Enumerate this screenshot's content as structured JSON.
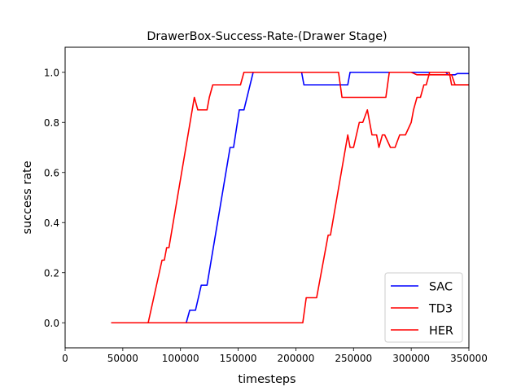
{
  "chart_data": {
    "type": "line",
    "title": "DrawerBox-Success-Rate-(Drawer Stage)",
    "xlabel": "timesteps",
    "ylabel": "success rate",
    "xlim": [
      0,
      350000
    ],
    "ylim": [
      -0.1,
      1.1
    ],
    "xticks": [
      0,
      50000,
      100000,
      150000,
      200000,
      250000,
      300000,
      350000
    ],
    "xtick_labels": [
      "0",
      "50000",
      "100000",
      "150000",
      "200000",
      "250000",
      "300000",
      "350000"
    ],
    "yticks": [
      0.0,
      0.2,
      0.4,
      0.6,
      0.8,
      1.0
    ],
    "ytick_labels": [
      "0.0",
      "0.2",
      "0.4",
      "0.6",
      "0.8",
      "1.0"
    ],
    "grid": false,
    "legend_position": "lower-right",
    "series": [
      {
        "name": "SAC",
        "color": "#0000ff",
        "x": [
          40000,
          105000,
          108000,
          113000,
          118000,
          123000,
          143000,
          146000,
          151000,
          155000,
          163000,
          165000,
          205000,
          207000,
          245000,
          247000,
          330000,
          332000,
          338000,
          340000,
          350000
        ],
        "y": [
          0,
          0,
          0.05,
          0.05,
          0.15,
          0.15,
          0.7,
          0.7,
          0.85,
          0.85,
          1.0,
          1.0,
          1.0,
          0.95,
          0.95,
          1.0,
          1.0,
          0.99,
          0.99,
          0.995,
          0.995
        ]
      },
      {
        "name": "TD3",
        "color": "#ff0000",
        "x": [
          40000,
          72000,
          84000,
          86000,
          88000,
          90000,
          112000,
          115000,
          123000,
          125000,
          128000,
          152000,
          155000,
          237000,
          240000,
          278000,
          281000,
          300000,
          305000,
          335000,
          338000,
          350000
        ],
        "y": [
          0,
          0,
          0.25,
          0.25,
          0.3,
          0.3,
          0.9,
          0.85,
          0.85,
          0.9,
          0.95,
          0.95,
          1.0,
          1.0,
          0.9,
          0.9,
          1.0,
          1.0,
          0.99,
          0.99,
          0.95,
          0.95
        ]
      },
      {
        "name": "HER",
        "color": "#ff0000",
        "x": [
          40000,
          206000,
          209000,
          218000,
          220000,
          228000,
          230000,
          245000,
          247000,
          250000,
          255000,
          258000,
          262000,
          266000,
          268000,
          270000,
          272000,
          275000,
          277000,
          282000,
          284000,
          286000,
          290000,
          292000,
          295000,
          300000,
          302000,
          305000,
          308000,
          311000,
          313000,
          316000,
          320000,
          333000,
          335000,
          350000
        ],
        "y": [
          0,
          0,
          0.1,
          0.1,
          0.15,
          0.35,
          0.35,
          0.75,
          0.7,
          0.7,
          0.8,
          0.8,
          0.85,
          0.75,
          0.75,
          0.75,
          0.7,
          0.75,
          0.75,
          0.7,
          0.7,
          0.7,
          0.75,
          0.75,
          0.75,
          0.8,
          0.85,
          0.9,
          0.9,
          0.95,
          0.95,
          1.0,
          1.0,
          1.0,
          0.95,
          0.95
        ]
      }
    ]
  }
}
